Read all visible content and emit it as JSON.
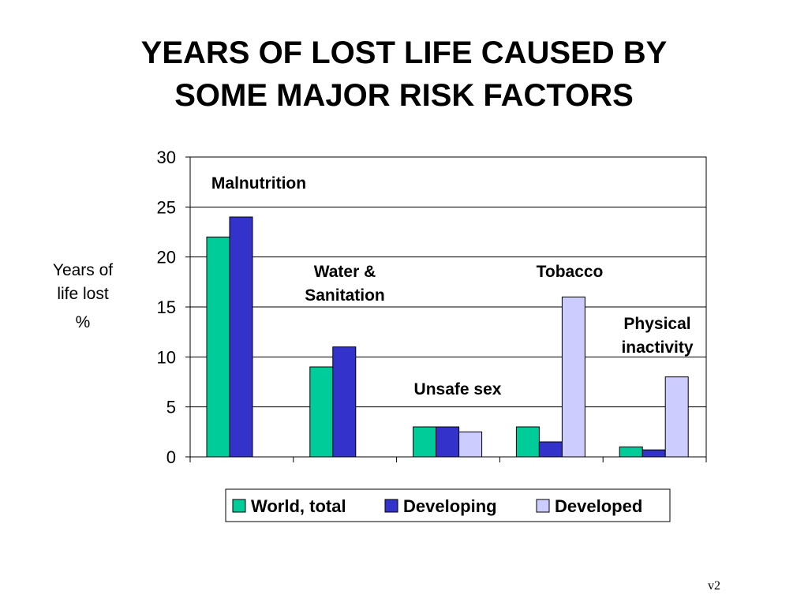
{
  "slide": {
    "title_lines": [
      "YEARS OF LOST LIFE CAUSED BY",
      "SOME MAJOR RISK FACTORS"
    ],
    "version": "v2"
  },
  "chart_data": {
    "type": "bar",
    "ylabel_lines": [
      "Years of",
      "life lost"
    ],
    "ylabel_unit": "%",
    "categories": [
      "Malnutrition",
      "Water & Sanitation",
      "Unsafe sex",
      "Tobacco",
      "Physical inactivity"
    ],
    "category_label_lines": [
      [
        "Malnutrition"
      ],
      [
        "Water &",
        "Sanitation"
      ],
      [
        "Unsafe sex"
      ],
      [
        "Tobacco"
      ],
      [
        "Physical",
        "inactivity"
      ]
    ],
    "series": [
      {
        "name": "World, total",
        "values": [
          22,
          9,
          3,
          3,
          1
        ],
        "color": "#00cc99"
      },
      {
        "name": "Developing",
        "values": [
          24,
          11,
          3,
          1.5,
          0.7
        ],
        "color": "#3333cc"
      },
      {
        "name": "Developed",
        "values": [
          null,
          null,
          2.5,
          16,
          8
        ],
        "color": "#ccccff"
      }
    ],
    "ylim": [
      0,
      30
    ],
    "yticks": [
      0,
      5,
      10,
      15,
      20,
      25,
      30
    ],
    "grid": true,
    "legend_position": "bottom"
  }
}
